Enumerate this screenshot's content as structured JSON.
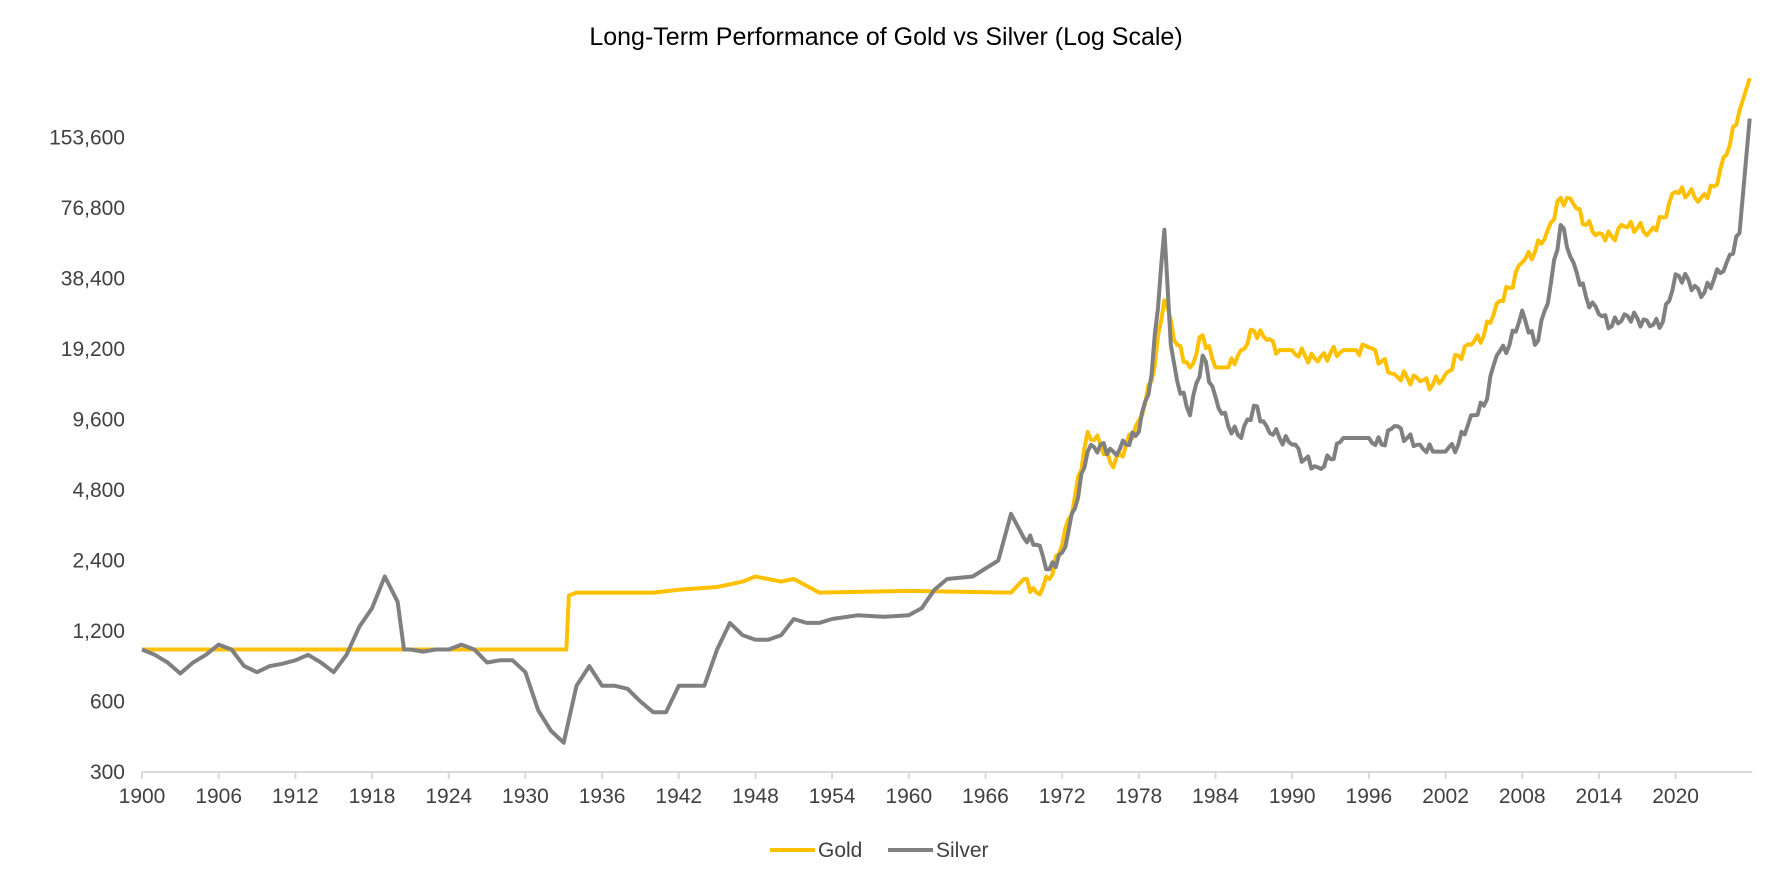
{
  "chart_data": {
    "type": "line",
    "title": "Long-Term Performance of Gold vs Silver (Log Scale)",
    "xlabel": "",
    "ylabel": "",
    "y_scale": "log2",
    "ylim": [
      300,
      307200
    ],
    "xlim": [
      1900,
      2026
    ],
    "y_ticks": [
      "300",
      "600",
      "1,200",
      "2,400",
      "4,800",
      "9,600",
      "19,200",
      "38,400",
      "76,800",
      "153,600"
    ],
    "y_tick_values": [
      300,
      600,
      1200,
      2400,
      4800,
      9600,
      19200,
      38400,
      76800,
      153600
    ],
    "x_ticks": [
      "1900",
      "1906",
      "1912",
      "1918",
      "1924",
      "1930",
      "1936",
      "1942",
      "1948",
      "1954",
      "1960",
      "1966",
      "1972",
      "1978",
      "1984",
      "1990",
      "1996",
      "2002",
      "2008",
      "2014",
      "2020"
    ],
    "grid": false,
    "legend": "bottom",
    "series": [
      {
        "name": "Gold",
        "color": "#FFC000",
        "points": [
          [
            1900,
            1000
          ],
          [
            1933.2,
            1000
          ],
          [
            1933.4,
            1700
          ],
          [
            1934,
            1750
          ],
          [
            1940,
            1750
          ],
          [
            1942,
            1800
          ],
          [
            1945,
            1850
          ],
          [
            1947,
            1950
          ],
          [
            1948,
            2050
          ],
          [
            1950,
            1950
          ],
          [
            1951,
            2000
          ],
          [
            1953,
            1750
          ],
          [
            1960,
            1780
          ],
          [
            1968,
            1750
          ],
          [
            1969,
            2000
          ],
          [
            1970,
            1750
          ],
          [
            1971,
            2000
          ],
          [
            1972,
            2800
          ],
          [
            1973,
            4500
          ],
          [
            1974,
            8500
          ],
          [
            1975,
            7500
          ],
          [
            1976,
            6000
          ],
          [
            1977,
            7500
          ],
          [
            1978,
            9500
          ],
          [
            1979,
            14000
          ],
          [
            1980,
            31000
          ],
          [
            1981,
            20000
          ],
          [
            1982,
            16000
          ],
          [
            1983,
            22000
          ],
          [
            1984,
            16000
          ],
          [
            1985,
            16000
          ],
          [
            1986,
            19000
          ],
          [
            1987,
            23000
          ],
          [
            1988,
            21000
          ],
          [
            1989,
            19000
          ],
          [
            1990,
            19000
          ],
          [
            1991,
            18000
          ],
          [
            1992,
            17000
          ],
          [
            1993,
            18500
          ],
          [
            1994,
            19000
          ],
          [
            1995,
            19000
          ],
          [
            1996,
            19500
          ],
          [
            1997,
            17000
          ],
          [
            1998,
            15000
          ],
          [
            1999,
            14500
          ],
          [
            2000,
            14000
          ],
          [
            2001,
            13500
          ],
          [
            2002,
            15000
          ],
          [
            2003,
            18000
          ],
          [
            2004,
            20000
          ],
          [
            2005,
            22000
          ],
          [
            2006,
            30000
          ],
          [
            2007,
            35000
          ],
          [
            2008,
            45000
          ],
          [
            2009,
            50000
          ],
          [
            2010,
            62000
          ],
          [
            2011,
            85000
          ],
          [
            2012,
            80000
          ],
          [
            2013,
            65000
          ],
          [
            2014,
            60000
          ],
          [
            2015,
            58000
          ],
          [
            2016,
            64000
          ],
          [
            2017,
            63000
          ],
          [
            2018,
            61000
          ],
          [
            2019,
            70000
          ],
          [
            2020,
            90000
          ],
          [
            2021,
            88000
          ],
          [
            2022,
            85000
          ],
          [
            2023,
            95000
          ],
          [
            2024,
            130000
          ],
          [
            2025,
            200000
          ],
          [
            2025.8,
            275000
          ]
        ]
      },
      {
        "name": "Silver",
        "color": "#808080",
        "points": [
          [
            1900,
            1000
          ],
          [
            1901,
            950
          ],
          [
            1902,
            880
          ],
          [
            1903,
            790
          ],
          [
            1904,
            880
          ],
          [
            1905,
            950
          ],
          [
            1906,
            1050
          ],
          [
            1907,
            1000
          ],
          [
            1908,
            850
          ],
          [
            1909,
            800
          ],
          [
            1910,
            850
          ],
          [
            1911,
            870
          ],
          [
            1912,
            900
          ],
          [
            1913,
            950
          ],
          [
            1914,
            880
          ],
          [
            1915,
            800
          ],
          [
            1916,
            950
          ],
          [
            1917,
            1250
          ],
          [
            1918,
            1500
          ],
          [
            1919,
            2050
          ],
          [
            1920,
            1600
          ],
          [
            1920.5,
            1000
          ],
          [
            1921,
            1000
          ],
          [
            1922,
            980
          ],
          [
            1923,
            1000
          ],
          [
            1924,
            1000
          ],
          [
            1925,
            1050
          ],
          [
            1926,
            1000
          ],
          [
            1927,
            880
          ],
          [
            1928,
            900
          ],
          [
            1929,
            900
          ],
          [
            1930,
            800
          ],
          [
            1931,
            550
          ],
          [
            1932,
            450
          ],
          [
            1933,
            400
          ],
          [
            1934,
            700
          ],
          [
            1935,
            850
          ],
          [
            1936,
            700
          ],
          [
            1937,
            700
          ],
          [
            1938,
            680
          ],
          [
            1939,
            600
          ],
          [
            1940,
            540
          ],
          [
            1941,
            540
          ],
          [
            1942,
            700
          ],
          [
            1944,
            700
          ],
          [
            1945,
            1000
          ],
          [
            1946,
            1300
          ],
          [
            1947,
            1150
          ],
          [
            1948,
            1100
          ],
          [
            1949,
            1100
          ],
          [
            1950,
            1150
          ],
          [
            1951,
            1350
          ],
          [
            1952,
            1300
          ],
          [
            1953,
            1300
          ],
          [
            1954,
            1350
          ],
          [
            1956,
            1400
          ],
          [
            1958,
            1380
          ],
          [
            1960,
            1400
          ],
          [
            1961,
            1500
          ],
          [
            1962,
            1800
          ],
          [
            1963,
            2000
          ],
          [
            1965,
            2050
          ],
          [
            1967,
            2400
          ],
          [
            1968,
            3800
          ],
          [
            1969,
            3000
          ],
          [
            1970,
            2800
          ],
          [
            1971,
            2200
          ],
          [
            1972,
            2600
          ],
          [
            1973,
            4000
          ],
          [
            1974,
            7000
          ],
          [
            1975,
            7500
          ],
          [
            1976,
            7000
          ],
          [
            1977,
            7500
          ],
          [
            1978,
            8500
          ],
          [
            1979,
            15000
          ],
          [
            1980,
            62000
          ],
          [
            1980.5,
            20000
          ],
          [
            1981,
            14000
          ],
          [
            1982,
            10000
          ],
          [
            1983,
            18000
          ],
          [
            1984,
            12000
          ],
          [
            1985,
            9000
          ],
          [
            1986,
            8000
          ],
          [
            1987,
            11000
          ],
          [
            1988,
            9000
          ],
          [
            1989,
            8000
          ],
          [
            1990,
            7500
          ],
          [
            1991,
            6500
          ],
          [
            1992,
            6000
          ],
          [
            1993,
            6500
          ],
          [
            1994,
            8000
          ],
          [
            1996,
            8000
          ],
          [
            1997,
            7500
          ],
          [
            1998,
            9000
          ],
          [
            1999,
            8000
          ],
          [
            2000,
            7500
          ],
          [
            2001,
            7000
          ],
          [
            2002,
            7000
          ],
          [
            2003,
            7500
          ],
          [
            2004,
            10000
          ],
          [
            2005,
            11000
          ],
          [
            2006,
            18000
          ],
          [
            2007,
            20000
          ],
          [
            2008,
            28000
          ],
          [
            2009,
            20000
          ],
          [
            2010,
            30000
          ],
          [
            2011,
            65000
          ],
          [
            2012,
            45000
          ],
          [
            2013,
            32000
          ],
          [
            2014,
            27000
          ],
          [
            2015,
            24000
          ],
          [
            2016,
            27000
          ],
          [
            2017,
            26000
          ],
          [
            2018,
            24000
          ],
          [
            2019,
            25000
          ],
          [
            2020,
            40000
          ],
          [
            2021,
            38000
          ],
          [
            2022,
            32000
          ],
          [
            2023,
            38000
          ],
          [
            2024,
            45000
          ],
          [
            2025,
            60000
          ],
          [
            2025.8,
            185000
          ]
        ]
      }
    ]
  }
}
